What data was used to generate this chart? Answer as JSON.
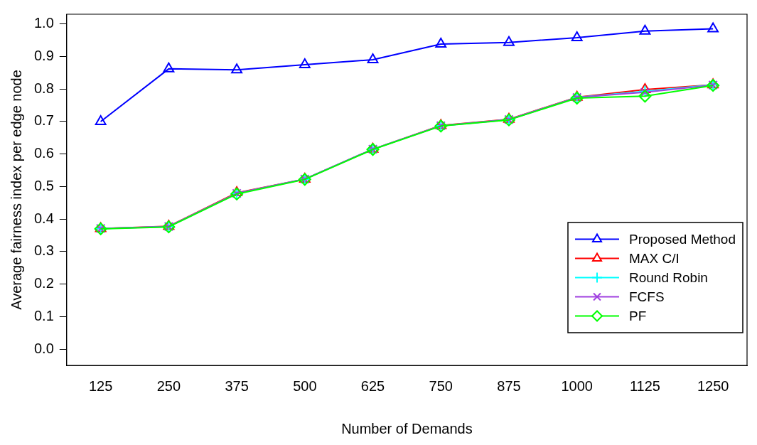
{
  "chart_data": {
    "type": "line",
    "xlabel": "Number of Demands",
    "ylabel": "Average fairness index per edge node",
    "categories": [
      "125",
      "250",
      "375",
      "500",
      "625",
      "750",
      "875",
      "1000",
      "1125",
      "1250"
    ],
    "series": [
      {
        "name": "Proposed Method",
        "color": "#0000ff",
        "marker": "triangle",
        "values": [
          0.7,
          0.862,
          0.859,
          0.875,
          0.89,
          0.938,
          0.943,
          0.958,
          0.978,
          0.985
        ]
      },
      {
        "name": "MAX C/I",
        "color": "#ff0000",
        "marker": "triangle",
        "values": [
          0.371,
          0.378,
          0.481,
          0.523,
          0.615,
          0.688,
          0.707,
          0.775,
          0.798,
          0.813
        ]
      },
      {
        "name": "Round Robin",
        "color": "#00ffff",
        "marker": "plus",
        "values": [
          0.371,
          0.377,
          0.479,
          0.523,
          0.615,
          0.687,
          0.706,
          0.774,
          0.793,
          0.813
        ]
      },
      {
        "name": "FCFS",
        "color": "#a040e0",
        "marker": "cross",
        "values": [
          0.371,
          0.377,
          0.479,
          0.523,
          0.615,
          0.687,
          0.706,
          0.774,
          0.79,
          0.812
        ]
      },
      {
        "name": "PF",
        "color": "#00ff00",
        "marker": "diamond",
        "values": [
          0.37,
          0.376,
          0.477,
          0.522,
          0.614,
          0.686,
          0.705,
          0.772,
          0.778,
          0.811
        ]
      }
    ],
    "ylim": [
      -0.05,
      1.03
    ],
    "yticks": [
      {
        "value": 0,
        "label": "0.0"
      },
      {
        "value": 0.1,
        "label": "0.1"
      },
      {
        "value": 0.2,
        "label": "0.2"
      },
      {
        "value": 0.3,
        "label": "0.3"
      },
      {
        "value": 0.4,
        "label": "0.4"
      },
      {
        "value": 0.5,
        "label": "0.5"
      },
      {
        "value": 0.6,
        "label": "0.6"
      },
      {
        "value": 0.7,
        "label": "0.7"
      },
      {
        "value": 0.8,
        "label": "0.8"
      },
      {
        "value": 0.9,
        "label": "0.9"
      },
      {
        "value": 1,
        "label": "1.0"
      }
    ],
    "legend": "bottom right",
    "grid": false,
    "line_style": "solid"
  }
}
